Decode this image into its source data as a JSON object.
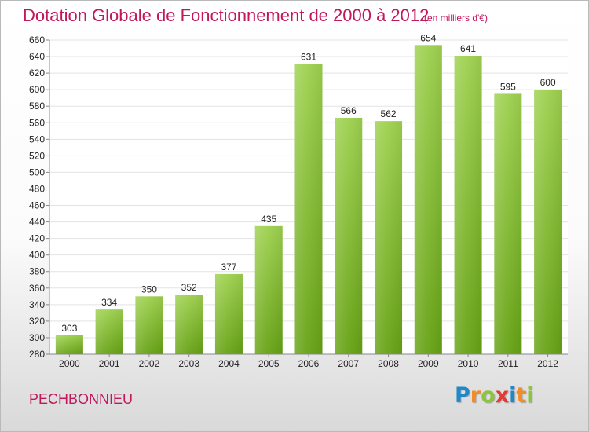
{
  "title": "Dotation Globale de Fonctionnement de 2000 à 2012",
  "subtitle": "(en milliers d'€)",
  "place_name": "PECHBONNIEU",
  "logo": {
    "letters": [
      "P",
      "r",
      "o",
      "x",
      "i",
      "t",
      "i"
    ],
    "colors": [
      "#1e88c9",
      "#f28c28",
      "#8bc53f",
      "#e53935",
      "#1e88c9",
      "#f28c28",
      "#8bc53f"
    ]
  },
  "colors": {
    "title": "#c2185b",
    "bar_top": "#9ed14f",
    "bar_bottom": "#66a214",
    "grid": "#e3e3e3"
  },
  "chart_data": {
    "type": "bar",
    "title": "Dotation Globale de Fonctionnement de 2000 à 2012",
    "subtitle": "(en milliers d'€)",
    "categories": [
      "2000",
      "2001",
      "2002",
      "2003",
      "2004",
      "2005",
      "2006",
      "2007",
      "2008",
      "2009",
      "2010",
      "2011",
      "2012"
    ],
    "values": [
      303,
      334,
      350,
      352,
      377,
      435,
      631,
      566,
      562,
      654,
      641,
      595,
      600
    ],
    "ylim": [
      280,
      660
    ],
    "yticks": [
      280,
      300,
      320,
      340,
      360,
      380,
      400,
      420,
      440,
      460,
      480,
      500,
      520,
      540,
      560,
      580,
      600,
      620,
      640,
      660
    ],
    "grid": true,
    "legend": "none"
  }
}
